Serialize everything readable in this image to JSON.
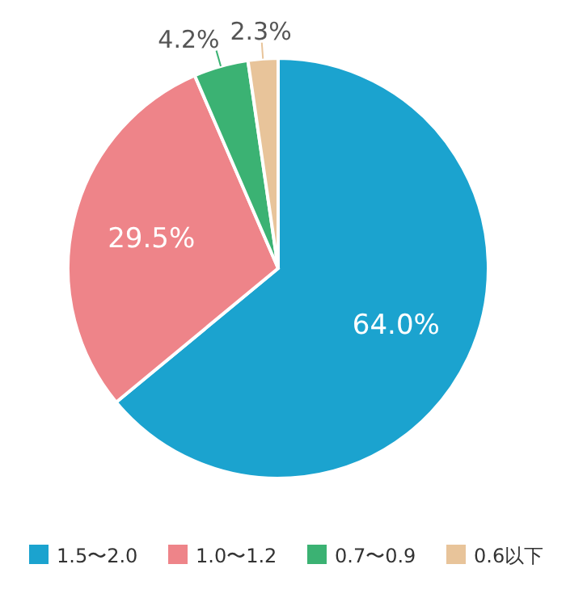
{
  "chart_data": {
    "type": "pie",
    "categories": [
      "1.5〜2.0",
      "1.0〜1.2",
      "0.7〜0.9",
      "0.6以下"
    ],
    "values": [
      64.0,
      29.5,
      4.2,
      2.3
    ],
    "value_labels": [
      "64.0%",
      "29.5%",
      "4.2%",
      "2.3%"
    ],
    "colors": [
      "#1ba3cf",
      "#ee8489",
      "#3bb273",
      "#e8c49a"
    ],
    "legend": "bottom"
  }
}
